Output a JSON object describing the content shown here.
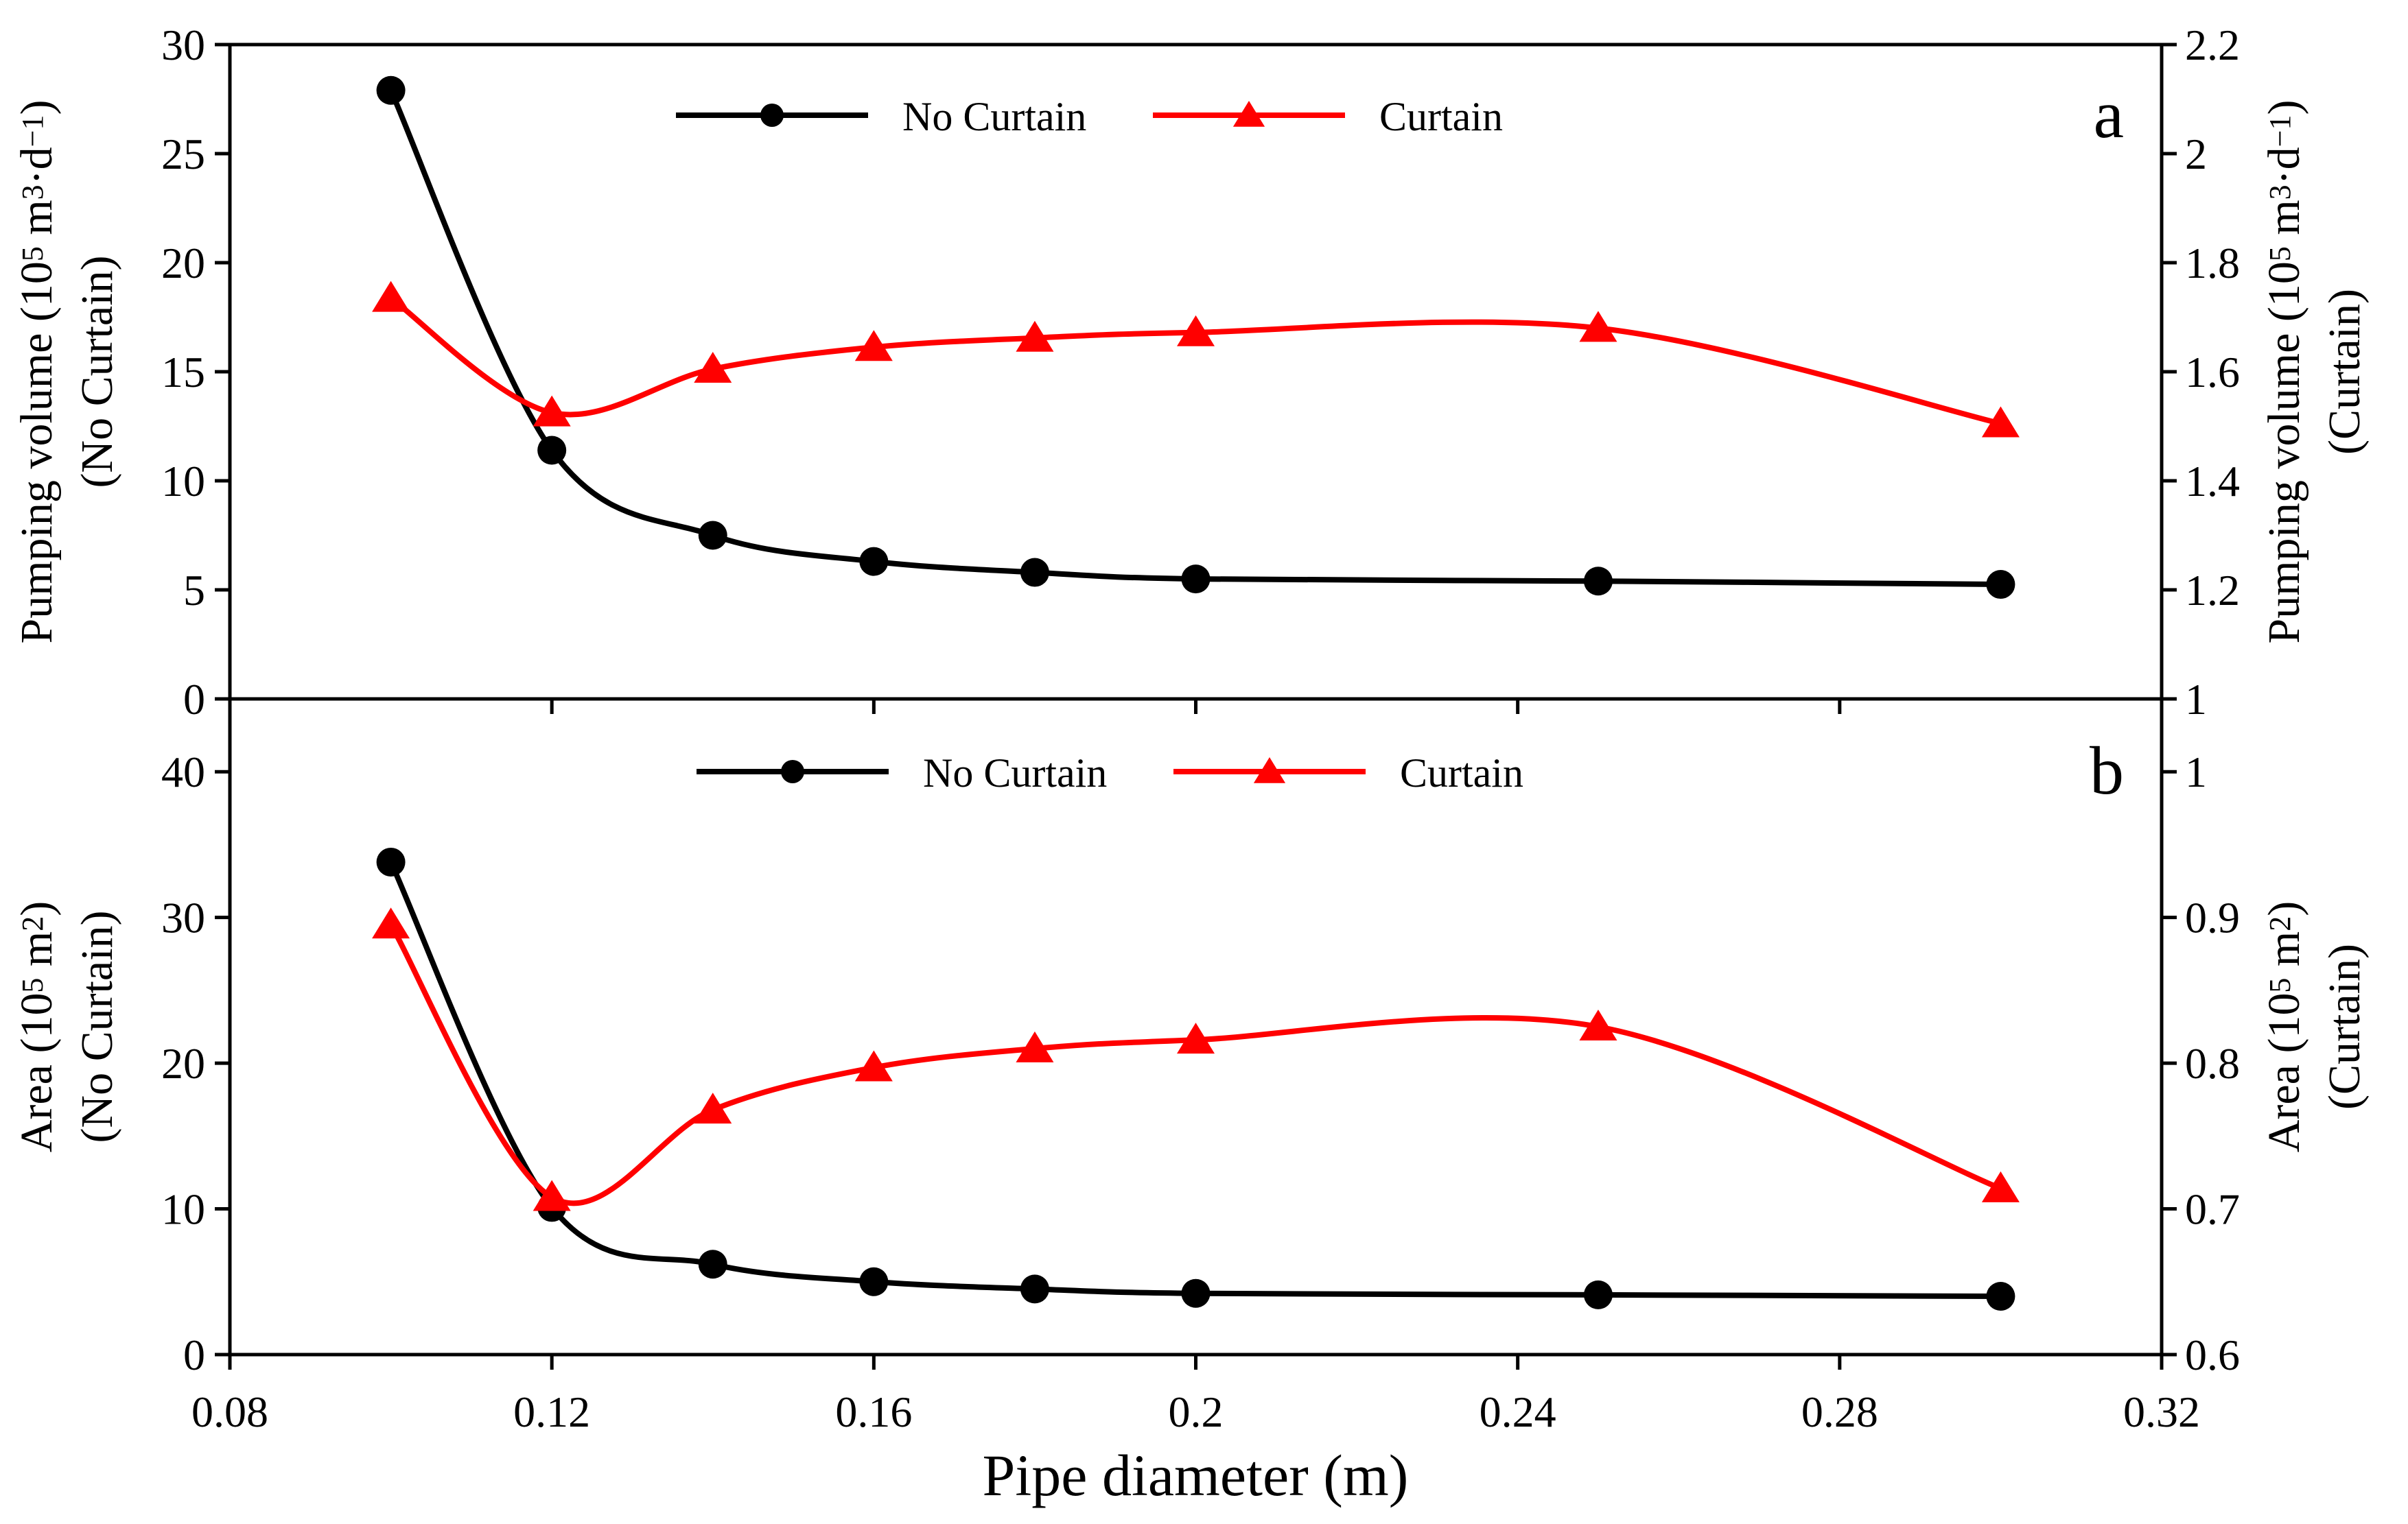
{
  "figure": {
    "xlabel": "Pipe diameter (m)",
    "x_ticks": [
      "0.08",
      "0.12",
      "0.16",
      "0.2",
      "0.24",
      "0.28",
      "0.32"
    ]
  },
  "chart_data": [
    {
      "type": "line",
      "panel_label": "a",
      "x": [
        0.1,
        0.12,
        0.14,
        0.16,
        0.18,
        0.2,
        0.25,
        0.3
      ],
      "xlim": [
        0.08,
        0.32
      ],
      "xlabel": "Pipe diameter (m)",
      "ylim_left": [
        0,
        30
      ],
      "ylim_right": [
        1,
        2.2
      ],
      "ylabel_left": [
        "Pumping volume (10",
        "5",
        " m",
        "3",
        "·d",
        "−1",
        ")"
      ],
      "ylabel_left_line2": "(No Curtain)",
      "ylabel_right": [
        "Pumping volume (10",
        "5",
        " m",
        "3",
        "·d",
        "−1",
        ")"
      ],
      "ylabel_right_line2": "(Curtain)",
      "left_ticks": [
        "0",
        "5",
        "10",
        "15",
        "20",
        "25",
        "30"
      ],
      "right_ticks": [
        "1",
        "1.2",
        "1.4",
        "1.6",
        "1.8",
        "2",
        "2.2"
      ],
      "series": [
        {
          "name": "No Curtain",
          "axis": "left",
          "color": "#000000",
          "marker": "circle",
          "values": [
            27.9,
            11.4,
            7.5,
            6.3,
            5.8,
            5.5,
            5.4,
            5.25
          ]
        },
        {
          "name": "Curtain",
          "axis": "right",
          "color": "#ff0000",
          "marker": "triangle",
          "values": [
            1.735,
            1.525,
            1.605,
            1.645,
            1.662,
            1.672,
            1.68,
            1.505
          ]
        }
      ],
      "legend": {
        "labels": [
          "No Curtain",
          "Curtain"
        ],
        "placement": "top-center"
      }
    },
    {
      "type": "line",
      "panel_label": "b",
      "x": [
        0.1,
        0.12,
        0.14,
        0.16,
        0.18,
        0.2,
        0.25,
        0.3
      ],
      "xlim": [
        0.08,
        0.32
      ],
      "xlabel": "Pipe diameter (m)",
      "ylim_left": [
        0,
        45
      ],
      "ylim_right": [
        0.6,
        1.05
      ],
      "ylabel_left": [
        "Area (10",
        "5",
        " m",
        "2",
        ")"
      ],
      "ylabel_left_line2": "(No Curtain)",
      "ylabel_right": [
        "Area (10",
        "5",
        " m",
        "2",
        ")"
      ],
      "ylabel_right_line2": "(Curtain)",
      "left_ticks": [
        "0",
        "10",
        "20",
        "30",
        "40"
      ],
      "right_ticks": [
        "0.6",
        "0.7",
        "0.8",
        "0.9",
        "1"
      ],
      "series": [
        {
          "name": "No Curtain",
          "axis": "left",
          "color": "#000000",
          "marker": "circle",
          "values": [
            33.8,
            10.1,
            6.2,
            5.0,
            4.5,
            4.2,
            4.1,
            4.0
          ]
        },
        {
          "name": "Curtain",
          "axis": "right",
          "color": "#ff0000",
          "marker": "triangle",
          "values": [
            0.895,
            0.708,
            0.768,
            0.797,
            0.81,
            0.816,
            0.825,
            0.714
          ]
        }
      ],
      "legend": {
        "labels": [
          "No Curtain",
          "Curtain"
        ],
        "placement": "top-center"
      }
    }
  ]
}
